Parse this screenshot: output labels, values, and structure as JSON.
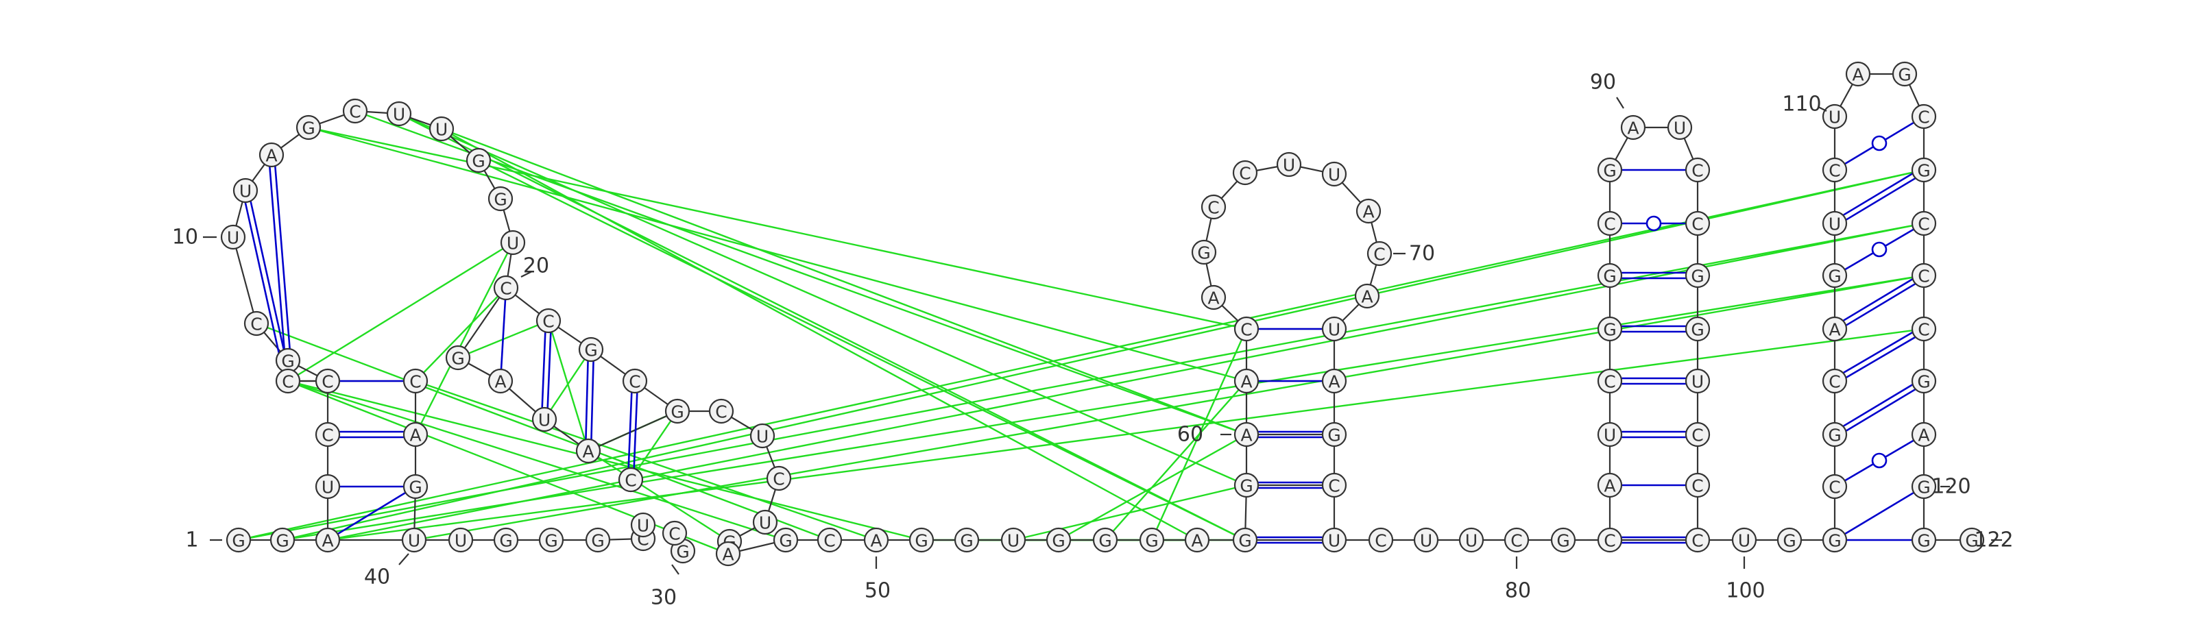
{
  "sequence": "GGAUUGGGCUUAGCUUGGUCCGCGCUCUGGAGCAGGUGGGAGGAACAGCCUUACAUAGCUCUUCGCAUCGGCGAUCCGGUCCCUGGCGCAGUCUAGCGCCCGAGGGUCCGCCCAGGAUACUC",
  "sequence_display": "GGAUUGGGCUUAGCUUGGUCCGCGCUCUGGAGCAGGUGGGAGGAACAGCCUUACAUAGCUCUUCGCAUCGGCGAUCCGGUCCCUGGCGCAGUCUAGCGCCCGAGGGUCCGCCCAGGAUACUC",
  "position_labels": [
    {
      "index": 1,
      "text": "1"
    },
    {
      "index": 10,
      "text": "10"
    },
    {
      "index": 20,
      "text": "20"
    },
    {
      "index": 30,
      "text": "30"
    },
    {
      "index": 40,
      "text": "40"
    },
    {
      "index": 50,
      "text": "50"
    },
    {
      "index": 60,
      "text": "60"
    },
    {
      "index": 70,
      "text": "70"
    },
    {
      "index": 80,
      "text": "80"
    },
    {
      "index": 90,
      "text": "90"
    },
    {
      "index": 100,
      "text": "100"
    },
    {
      "index": 110,
      "text": "110"
    },
    {
      "index": 120,
      "text": "120"
    },
    {
      "index": 122,
      "text": "122"
    }
  ],
  "colors": {
    "backbone": "#333333",
    "pair_line": "#0000cc",
    "interaction_line": "#22dd22",
    "node_fill": "#f2f2f2",
    "node_stroke": "#333333"
  }
}
